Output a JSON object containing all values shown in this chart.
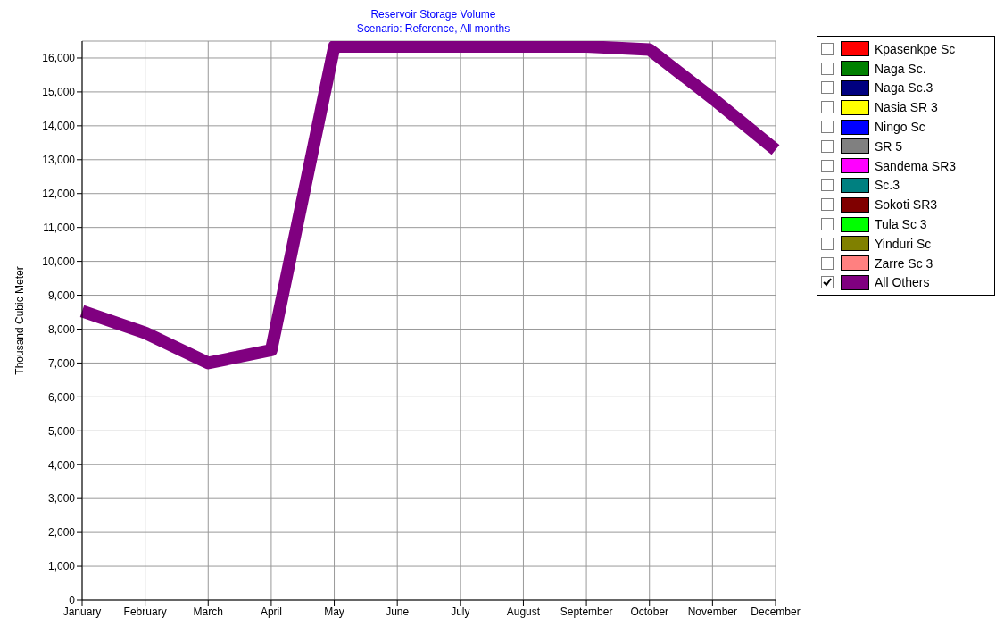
{
  "chart_data": {
    "type": "line",
    "title": "Reservoir Storage Volume",
    "subtitle": "Scenario: Reference,  All months",
    "ylabel": "Thousand Cubic Meter",
    "categories": [
      "January",
      "February",
      "March",
      "April",
      "May",
      "June",
      "July",
      "August",
      "September",
      "October",
      "November",
      "December"
    ],
    "ylim": [
      0,
      16500
    ],
    "yticks": [
      0,
      {
        "value": 1000,
        "label": "1,000"
      },
      {
        "value": 2000,
        "label": "2,000"
      },
      {
        "value": 3000,
        "label": "3,000"
      },
      {
        "value": 4000,
        "label": "4,000"
      },
      {
        "value": 5000,
        "label": "5,000"
      },
      {
        "value": 6000,
        "label": "6,000"
      },
      {
        "value": 7000,
        "label": "7,000"
      },
      {
        "value": 8000,
        "label": "8,000"
      },
      {
        "value": 9000,
        "label": "9,000"
      },
      {
        "value": 10000,
        "label": "10,000"
      },
      {
        "value": 11000,
        "label": "11,000"
      },
      {
        "value": 12000,
        "label": "12,000"
      },
      {
        "value": 13000,
        "label": "13,000"
      },
      {
        "value": 14000,
        "label": "14,000"
      },
      {
        "value": 15000,
        "label": "15,000"
      },
      {
        "value": 16000,
        "label": "16,000"
      }
    ],
    "grid": true,
    "legend": "right",
    "marker": "none",
    "series": [
      {
        "name": "Kpasenkpe Sc",
        "color": "#ff0000",
        "values": [
          null,
          null,
          null,
          null,
          null,
          null,
          null,
          null,
          null,
          null,
          null,
          null
        ]
      },
      {
        "name": "Naga Sc.",
        "color": "#008000",
        "values": [
          null,
          null,
          null,
          null,
          null,
          null,
          null,
          null,
          null,
          null,
          null,
          null
        ]
      },
      {
        "name": "Naga Sc.3",
        "color": "#000080",
        "values": [
          null,
          null,
          null,
          null,
          null,
          null,
          null,
          null,
          null,
          null,
          null,
          null
        ]
      },
      {
        "name": "Nasia SR 3",
        "color": "#ffff00",
        "values": [
          null,
          null,
          null,
          null,
          null,
          null,
          null,
          null,
          null,
          null,
          null,
          null
        ]
      },
      {
        "name": "Ningo Sc",
        "color": "#0000ff",
        "values": [
          null,
          null,
          null,
          null,
          null,
          null,
          null,
          null,
          null,
          null,
          null,
          null
        ]
      },
      {
        "name": "SR 5",
        "color": "#808080",
        "values": [
          null,
          null,
          null,
          null,
          null,
          null,
          null,
          null,
          null,
          null,
          null,
          null
        ]
      },
      {
        "name": "Sandema SR3",
        "color": "#ff00ff",
        "values": [
          null,
          null,
          null,
          null,
          null,
          null,
          null,
          null,
          null,
          null,
          null,
          null
        ]
      },
      {
        "name": "Sc.3",
        "color": "#008080",
        "values": [
          null,
          null,
          null,
          null,
          null,
          null,
          null,
          null,
          null,
          null,
          null,
          null
        ]
      },
      {
        "name": "Sokoti SR3",
        "color": "#800000",
        "values": [
          null,
          null,
          null,
          null,
          null,
          null,
          null,
          null,
          null,
          null,
          null,
          null
        ]
      },
      {
        "name": "Tula Sc 3",
        "color": "#00ff00",
        "values": [
          null,
          null,
          null,
          null,
          null,
          null,
          null,
          null,
          null,
          null,
          null,
          null
        ]
      },
      {
        "name": "Yinduri Sc",
        "color": "#808000",
        "values": [
          null,
          null,
          null,
          null,
          null,
          null,
          null,
          null,
          null,
          null,
          null,
          null
        ]
      },
      {
        "name": "Zarre Sc 3",
        "color": "#ff8080",
        "values": [
          null,
          null,
          null,
          null,
          null,
          null,
          null,
          null,
          null,
          null,
          null,
          null
        ]
      },
      {
        "name": "All Others",
        "color": "#800080",
        "values": [
          8530,
          7890,
          7000,
          7380,
          16340,
          16340,
          16340,
          16340,
          16340,
          16250,
          14810,
          13290
        ]
      }
    ]
  }
}
